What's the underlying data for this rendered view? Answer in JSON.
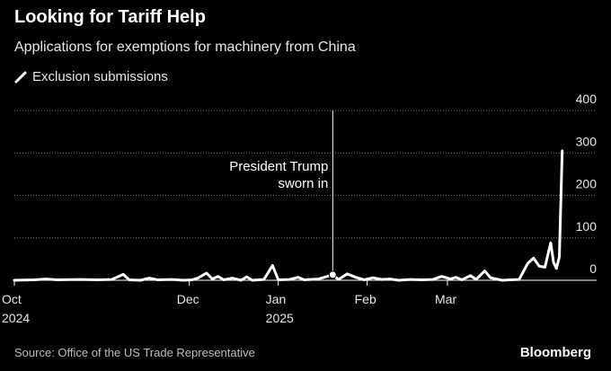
{
  "title": "Looking for Tariff Help",
  "subtitle": "Applications for exemptions for machinery from China",
  "legend_icon": "line-swatch-icon",
  "source": "Source: Office of the US Trade Representative",
  "brand": "Bloomberg",
  "colors": {
    "background": "#000000",
    "line": "#ffffff",
    "grid": "#7a7a7a"
  },
  "chart_data": {
    "type": "line",
    "title": "Looking for Tariff Help",
    "subtitle": "Applications for exemptions for machinery from China",
    "ylabel": "",
    "xlabel": "",
    "ylim": [
      0,
      400
    ],
    "y_ticks": [
      0,
      100,
      200,
      300,
      400
    ],
    "y_axis_position": "right",
    "grid": "horizontal dotted",
    "legend_position": "top-left",
    "x_domain": [
      "2024-10-01",
      "2025-04-22"
    ],
    "x_ticks": [
      {
        "date": "2024-10-01",
        "label": "Oct",
        "sublabel": "2024"
      },
      {
        "date": "2024-12-01",
        "label": "Dec",
        "sublabel": ""
      },
      {
        "date": "2025-01-01",
        "label": "Jan",
        "sublabel": "2025"
      },
      {
        "date": "2025-02-01",
        "label": "Feb",
        "sublabel": ""
      },
      {
        "date": "2025-03-01",
        "label": "Mar",
        "sublabel": ""
      }
    ],
    "annotation": {
      "date": "2025-01-20",
      "value": 13,
      "text": [
        "President Trump",
        "sworn in"
      ]
    },
    "series": [
      {
        "name": "Exclusion submissions",
        "points": [
          [
            "2024-10-01",
            0
          ],
          [
            "2024-10-08",
            1
          ],
          [
            "2024-10-12",
            3
          ],
          [
            "2024-10-16",
            1
          ],
          [
            "2024-10-24",
            2
          ],
          [
            "2024-10-30",
            1
          ],
          [
            "2024-11-04",
            2
          ],
          [
            "2024-11-08",
            14
          ],
          [
            "2024-11-10",
            1
          ],
          [
            "2024-11-14",
            0
          ],
          [
            "2024-11-17",
            5
          ],
          [
            "2024-11-20",
            1
          ],
          [
            "2024-11-25",
            2
          ],
          [
            "2024-11-29",
            0
          ],
          [
            "2024-12-02",
            1
          ],
          [
            "2024-12-04",
            5
          ],
          [
            "2024-12-07",
            17
          ],
          [
            "2024-12-09",
            3
          ],
          [
            "2024-12-11",
            9
          ],
          [
            "2024-12-13",
            1
          ],
          [
            "2024-12-16",
            5
          ],
          [
            "2024-12-19",
            0
          ],
          [
            "2024-12-21",
            8
          ],
          [
            "2024-12-23",
            0
          ],
          [
            "2024-12-27",
            2
          ],
          [
            "2024-12-30",
            35
          ],
          [
            "2025-01-01",
            1
          ],
          [
            "2025-01-05",
            2
          ],
          [
            "2025-01-08",
            7
          ],
          [
            "2025-01-10",
            1
          ],
          [
            "2025-01-15",
            3
          ],
          [
            "2025-01-20",
            13
          ],
          [
            "2025-01-22",
            2
          ],
          [
            "2025-01-25",
            15
          ],
          [
            "2025-01-28",
            7
          ],
          [
            "2025-01-31",
            1
          ],
          [
            "2025-02-03",
            6
          ],
          [
            "2025-02-06",
            2
          ],
          [
            "2025-02-09",
            3
          ],
          [
            "2025-02-12",
            0
          ],
          [
            "2025-02-16",
            2
          ],
          [
            "2025-02-20",
            1
          ],
          [
            "2025-02-24",
            2
          ],
          [
            "2025-02-27",
            9
          ],
          [
            "2025-03-02",
            3
          ],
          [
            "2025-03-04",
            7
          ],
          [
            "2025-03-06",
            1
          ],
          [
            "2025-03-09",
            11
          ],
          [
            "2025-03-11",
            2
          ],
          [
            "2025-03-14",
            22
          ],
          [
            "2025-03-16",
            6
          ],
          [
            "2025-03-18",
            3
          ],
          [
            "2025-03-20",
            0
          ],
          [
            "2025-03-23",
            1
          ],
          [
            "2025-03-26",
            2
          ],
          [
            "2025-03-29",
            40
          ],
          [
            "2025-03-31",
            52
          ],
          [
            "2025-04-02",
            33
          ],
          [
            "2025-04-04",
            31
          ],
          [
            "2025-04-06",
            88
          ],
          [
            "2025-04-07",
            42
          ],
          [
            "2025-04-08",
            28
          ],
          [
            "2025-04-09",
            55
          ],
          [
            "2025-04-10",
            305
          ]
        ]
      }
    ]
  }
}
